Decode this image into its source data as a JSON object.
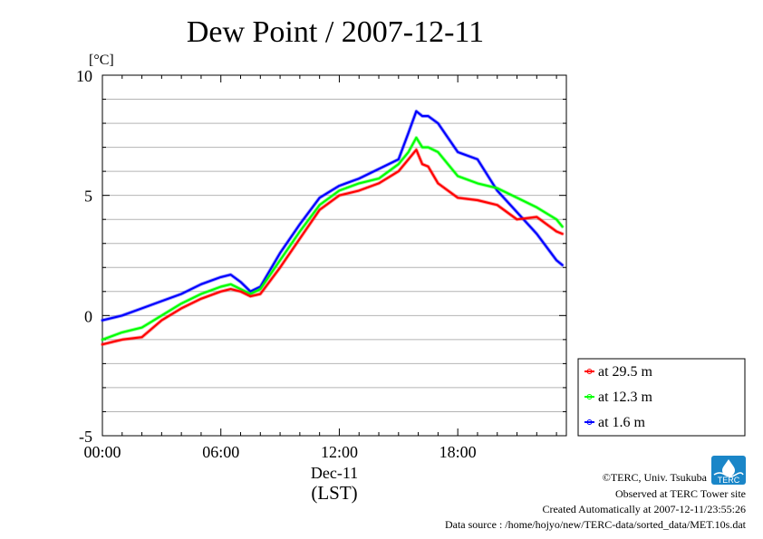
{
  "chart_data": {
    "type": "line",
    "title": "Dew Point / 2007-12-11",
    "ylabel_unit": "[°C]",
    "ylim": [
      -5,
      10
    ],
    "yticks": [
      "10",
      "5",
      "0",
      "-5"
    ],
    "yticks_values": [
      10,
      5,
      0,
      -5
    ],
    "xlim_hours": [
      0,
      23.5
    ],
    "xticks": [
      "00:00",
      "06:00",
      "12:00",
      "18:00"
    ],
    "xticks_hours": [
      0,
      6,
      12,
      18
    ],
    "xlabel_date": "Dec-11",
    "xlabel": "(LST)",
    "grid": true,
    "legend_placement": "bottom-right-outside",
    "series": [
      {
        "name": "at 29.5 m",
        "color": "#ff0000",
        "x": [
          0,
          1,
          2,
          3,
          4,
          5,
          6,
          6.5,
          7,
          7.5,
          8,
          9,
          10,
          11,
          12,
          13,
          14,
          15,
          15.5,
          15.9,
          16.2,
          16.5,
          17,
          17.5,
          18,
          19,
          20,
          21,
          22,
          23,
          23.3
        ],
        "y": [
          -1.2,
          -1.0,
          -0.9,
          -0.2,
          0.3,
          0.7,
          1.0,
          1.1,
          1.0,
          0.8,
          0.9,
          2.0,
          3.2,
          4.4,
          5.0,
          5.2,
          5.5,
          6.0,
          6.5,
          6.9,
          6.3,
          6.2,
          5.5,
          5.2,
          4.9,
          4.8,
          4.6,
          4.0,
          4.1,
          3.5,
          3.4
        ]
      },
      {
        "name": "at 12.3 m",
        "color": "#00ff00",
        "x": [
          0,
          1,
          2,
          3,
          4,
          5,
          6,
          6.5,
          7,
          7.5,
          8,
          9,
          10,
          11,
          12,
          13,
          14,
          15,
          15.5,
          15.9,
          16.2,
          16.5,
          17,
          17.5,
          18,
          19,
          20,
          21,
          22,
          23,
          23.3
        ],
        "y": [
          -1.0,
          -0.7,
          -0.5,
          0.0,
          0.5,
          0.9,
          1.2,
          1.3,
          1.1,
          0.9,
          1.1,
          2.3,
          3.5,
          4.6,
          5.2,
          5.5,
          5.7,
          6.3,
          6.8,
          7.4,
          7.0,
          7.0,
          6.8,
          6.3,
          5.8,
          5.5,
          5.3,
          4.9,
          4.5,
          4.0,
          3.7
        ]
      },
      {
        "name": "at 1.6 m",
        "color": "#0000ff",
        "x": [
          0,
          1,
          2,
          3,
          4,
          5,
          6,
          6.5,
          7,
          7.5,
          8,
          9,
          10,
          11,
          12,
          13,
          14,
          15,
          15.5,
          15.9,
          16.2,
          16.5,
          17,
          17.5,
          18,
          19,
          20,
          21,
          22,
          23,
          23.3
        ],
        "y": [
          -0.2,
          0.0,
          0.3,
          0.6,
          0.9,
          1.3,
          1.6,
          1.7,
          1.4,
          1.0,
          1.2,
          2.6,
          3.8,
          4.9,
          5.4,
          5.7,
          6.1,
          6.5,
          7.6,
          8.5,
          8.3,
          8.3,
          8.0,
          7.4,
          6.8,
          6.5,
          5.2,
          4.3,
          3.4,
          2.3,
          2.1
        ]
      }
    ]
  },
  "credits": {
    "copyright": "©TERC, Univ. Tsukuba",
    "observed": "Observed at TERC Tower site",
    "created": "Created Automatically at 2007-12-11/23:55:26",
    "source": "Data source : /home/hojyo/new/TERC-data/sorted_data/MET.10s.dat"
  },
  "logo": {
    "text": "TERC",
    "color": "#1a86c8",
    "icon": "terc-logo-icon"
  }
}
